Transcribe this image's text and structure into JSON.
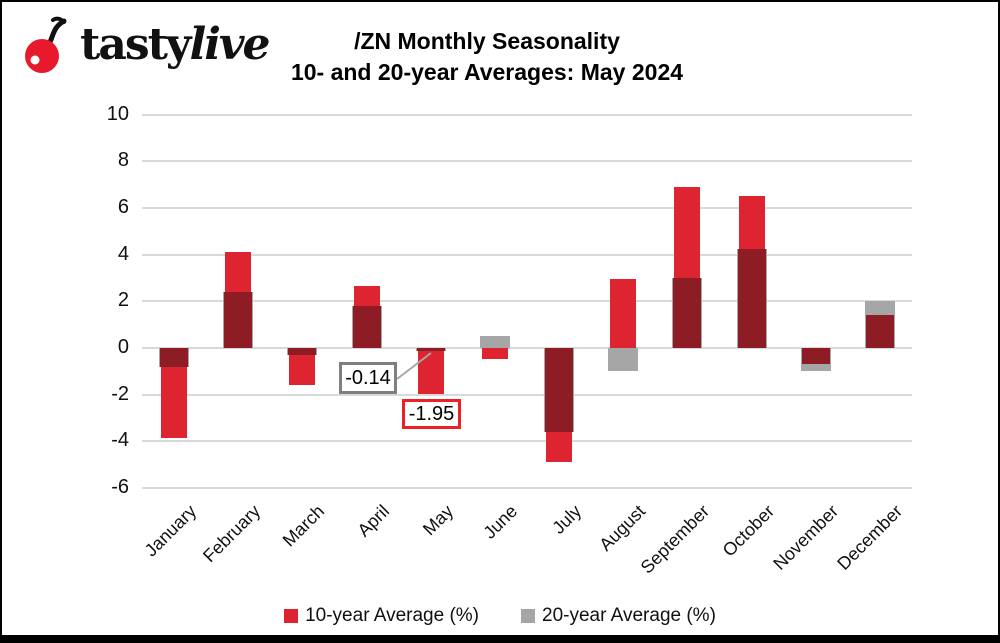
{
  "logo": {
    "brand_prefix": "tasty",
    "brand_suffix": "live",
    "cherry_color": "#e8192c"
  },
  "title": {
    "line1": "/ZN Monthly Seasonality",
    "line2": "10- and 20-year Averages: May 2024"
  },
  "chart_data": {
    "type": "bar",
    "title": "/ZN Monthly Seasonality 10- and 20-year Averages: May 2024",
    "categories": [
      "January",
      "February",
      "March",
      "April",
      "May",
      "June",
      "July",
      "August",
      "September",
      "October",
      "November",
      "December"
    ],
    "series": [
      {
        "name": "10-year Average (%)",
        "color": "#de2331",
        "values": [
          -3.85,
          4.1,
          -1.6,
          2.65,
          -1.95,
          -0.45,
          -4.9,
          2.95,
          6.9,
          6.5,
          -0.7,
          1.4
        ]
      },
      {
        "name": "20-year Average (%)",
        "color": "#a6a6a6",
        "values": [
          -0.8,
          2.4,
          -0.3,
          1.8,
          -0.14,
          0.5,
          -3.6,
          -1.0,
          3.0,
          4.25,
          -1.0,
          2.0
        ]
      }
    ],
    "overlap_color": "#8e1c25",
    "ylim": [
      -6,
      10
    ],
    "yticks": [
      10,
      8,
      6,
      4,
      2,
      0,
      -2,
      -4,
      -6
    ],
    "grid": true,
    "gridline_color": "#d9d9d9",
    "legend_position": "bottom"
  },
  "annotations": [
    {
      "label": "-0.14",
      "series": "20-year Average (%)",
      "month": "May",
      "border_color": "#7f7f7f"
    },
    {
      "label": "-1.95",
      "series": "10-year Average (%)",
      "month": "May",
      "border_color": "#ec2025"
    }
  ],
  "legend": {
    "items": [
      {
        "label": "10-year Average (%)",
        "color": "#de2331"
      },
      {
        "label": "20-year Average (%)",
        "color": "#a6a6a6"
      }
    ]
  }
}
